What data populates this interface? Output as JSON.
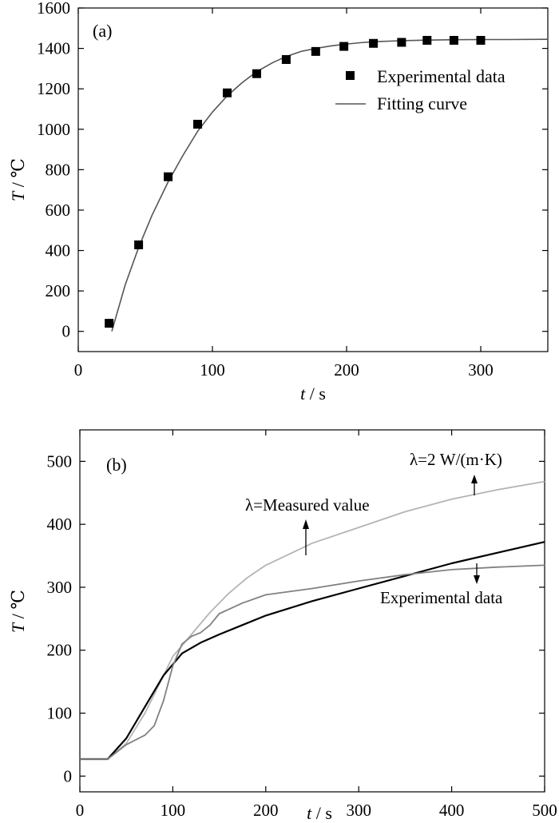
{
  "chart_data": [
    {
      "type": "scatter",
      "panel_label": "(a)",
      "xlabel_var": "t",
      "xlabel_unit": " / s",
      "ylabel_var": "T",
      "ylabel_unit": " / ℃",
      "xlim": [
        0,
        350
      ],
      "ylim": [
        -100,
        1600
      ],
      "xticks": [
        0,
        100,
        200,
        300
      ],
      "yticks": [
        0,
        200,
        400,
        600,
        800,
        1000,
        1200,
        1400,
        1600
      ],
      "legend_position": "right",
      "series": [
        {
          "name": "Experimental data",
          "style": "square-markers",
          "color": "#000000",
          "x": [
            23,
            45,
            67,
            89,
            111,
            133,
            155,
            177,
            198,
            220,
            241,
            260,
            280,
            300
          ],
          "y": [
            40,
            428,
            765,
            1025,
            1180,
            1275,
            1345,
            1385,
            1410,
            1425,
            1430,
            1440,
            1440,
            1440
          ]
        },
        {
          "name": "Fitting curve",
          "style": "line",
          "color": "#555555",
          "x": [
            25,
            35,
            45,
            55,
            67,
            78,
            89,
            100,
            111,
            122,
            133,
            145,
            155,
            166,
            177,
            188,
            198,
            210,
            220,
            240,
            260,
            280,
            300,
            320,
            350
          ],
          "y": [
            0,
            230,
            415,
            575,
            740,
            870,
            990,
            1085,
            1165,
            1230,
            1285,
            1330,
            1360,
            1385,
            1400,
            1412,
            1420,
            1428,
            1433,
            1438,
            1441,
            1443,
            1444,
            1444,
            1445
          ]
        }
      ]
    },
    {
      "type": "line",
      "panel_label": "(b)",
      "xlabel_var": "t",
      "xlabel_unit": " / s",
      "ylabel_var": "T",
      "ylabel_unit": " / ℃",
      "xlim": [
        0,
        500
      ],
      "ylim": [
        -25,
        550
      ],
      "xticks": [
        0,
        100,
        200,
        300,
        400,
        500
      ],
      "yticks": [
        0,
        100,
        200,
        300,
        400,
        500
      ],
      "annotations": {
        "measured": "λ=Measured value",
        "lambda2": "λ=2 W/(m·K)",
        "experimental": "Experimental data"
      },
      "series": [
        {
          "name": "λ=2 W/(m·K)",
          "color": "#b4b4b4",
          "x": [
            0,
            30,
            50,
            70,
            90,
            100,
            120,
            140,
            160,
            180,
            200,
            250,
            300,
            350,
            400,
            450,
            500
          ],
          "y": [
            27,
            27,
            52,
            100,
            160,
            190,
            225,
            260,
            290,
            315,
            335,
            370,
            395,
            420,
            440,
            455,
            468
          ]
        },
        {
          "name": "λ=Measured value",
          "color": "#000000",
          "x": [
            0,
            30,
            50,
            70,
            90,
            110,
            130,
            150,
            175,
            200,
            250,
            300,
            350,
            400,
            450,
            500
          ],
          "y": [
            27,
            27,
            60,
            110,
            160,
            195,
            212,
            225,
            240,
            255,
            278,
            298,
            318,
            338,
            355,
            372
          ]
        },
        {
          "name": "Experimental data",
          "color": "#808080",
          "x": [
            0,
            30,
            50,
            70,
            80,
            90,
            100,
            110,
            120,
            130,
            140,
            150,
            175,
            200,
            250,
            300,
            350,
            400,
            450,
            500
          ],
          "y": [
            27,
            27,
            50,
            65,
            80,
            120,
            175,
            210,
            222,
            228,
            240,
            258,
            275,
            288,
            298,
            310,
            320,
            328,
            332,
            335
          ]
        }
      ]
    }
  ]
}
